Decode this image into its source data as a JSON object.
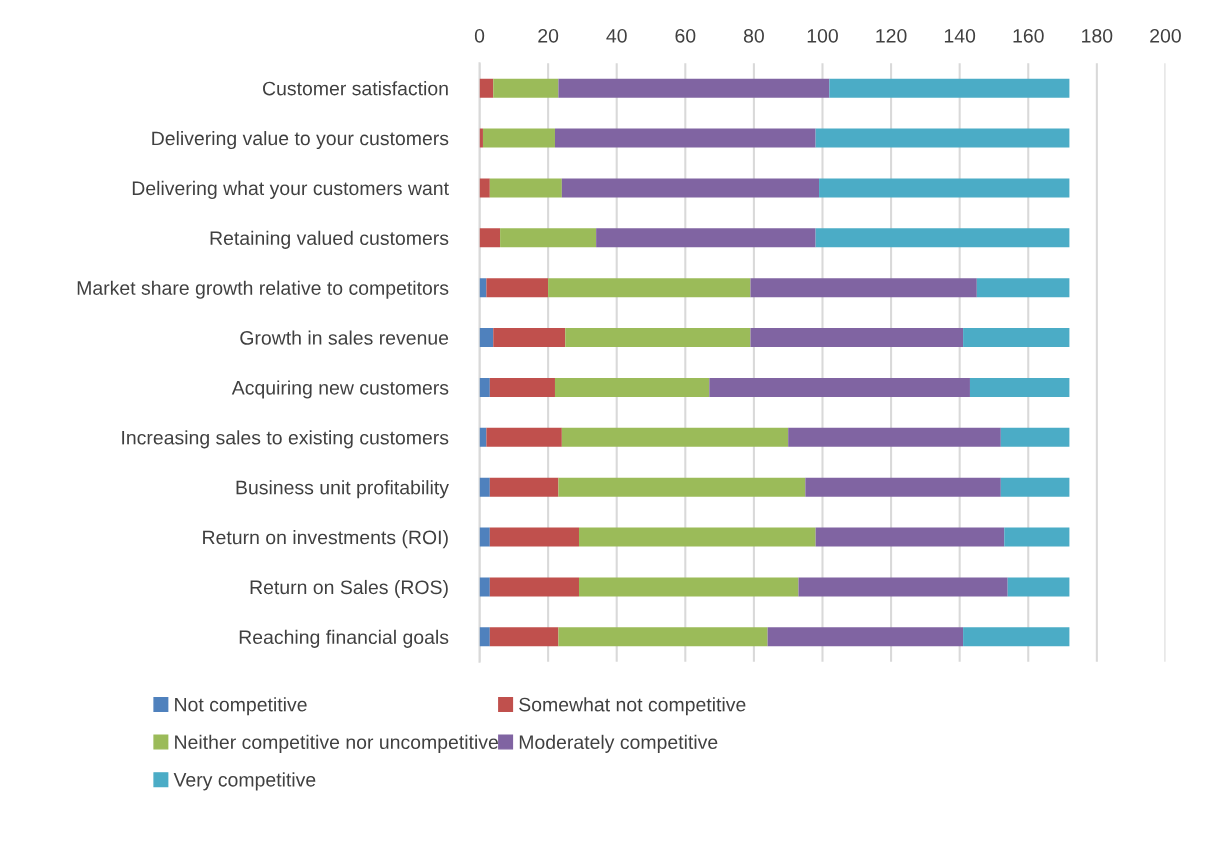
{
  "chart_data": {
    "type": "bar",
    "orientation": "horizontal",
    "stacked": true,
    "grid": "x",
    "legend": "bottom",
    "categories": [
      "Customer satisfaction",
      "Delivering value to your customers",
      "Delivering what your customers want",
      "Retaining valued customers",
      "Market share growth relative to competitors",
      "Growth in sales revenue",
      "Acquiring new customers",
      "Increasing sales to existing customers",
      "Business unit profitability",
      "Return on investments (ROI)",
      "Return on Sales (ROS)",
      "Reaching financial goals"
    ],
    "xlim": [
      0,
      200
    ],
    "xticks": [
      0,
      20,
      40,
      60,
      80,
      100,
      120,
      140,
      160,
      180,
      200
    ],
    "series": [
      {
        "name": "Not competitive",
        "color": "#4f81bd",
        "values": [
          0,
          0,
          0,
          0,
          2,
          4,
          3,
          2,
          3,
          3,
          3,
          3
        ]
      },
      {
        "name": "Somewhat not competitive",
        "color": "#c0504d",
        "values": [
          4,
          1,
          3,
          6,
          18,
          21,
          19,
          22,
          20,
          26,
          26,
          20
        ]
      },
      {
        "name": "Neither competitive nor uncompetitive",
        "color": "#9bbb59",
        "values": [
          19,
          21,
          21,
          28,
          59,
          54,
          45,
          66,
          72,
          69,
          64,
          61
        ]
      },
      {
        "name": "Moderately competitive",
        "color": "#8064a2",
        "values": [
          79,
          76,
          75,
          64,
          66,
          62,
          76,
          62,
          57,
          55,
          61,
          57
        ]
      },
      {
        "name": "Very competitive",
        "color": "#4bacc6",
        "values": [
          70,
          74,
          73,
          74,
          27,
          31,
          29,
          20,
          20,
          19,
          18,
          31
        ]
      }
    ]
  }
}
